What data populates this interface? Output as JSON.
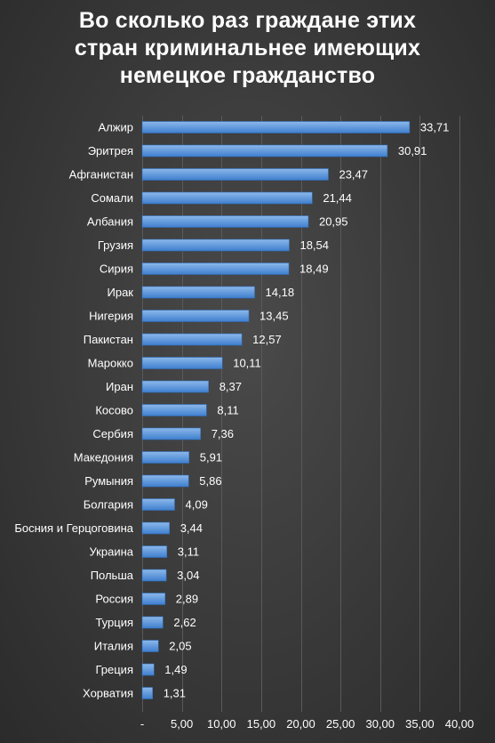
{
  "chart_data": {
    "type": "bar",
    "orientation": "horizontal",
    "title_lines": [
      "Во сколько раз граждане этих",
      "стран криминальнее имеющих",
      "немецкое гражданство"
    ],
    "categories": [
      "Алжир",
      "Эритрея",
      "Афганистан",
      "Сомали",
      "Албания",
      "Грузия",
      "Сирия",
      "Ирак",
      "Нигерия",
      "Пакистан",
      "Марокко",
      "Иран",
      "Косово",
      "Сербия",
      "Македония",
      "Румыния",
      "Болгария",
      "Босния и Герцоговина",
      "Украина",
      "Польша",
      "Россия",
      "Турция",
      "Италия",
      "Греция",
      "Хорватия"
    ],
    "values": [
      33.71,
      30.91,
      23.47,
      21.44,
      20.95,
      18.54,
      18.49,
      14.18,
      13.45,
      12.57,
      10.11,
      8.37,
      8.11,
      7.36,
      5.91,
      5.86,
      4.09,
      3.44,
      3.11,
      3.04,
      2.89,
      2.62,
      2.05,
      1.49,
      1.31
    ],
    "value_labels": [
      "33,71",
      "30,91",
      "23,47",
      "21,44",
      "20,95",
      "18,54",
      "18,49",
      "14,18",
      "13,45",
      "12,57",
      "10,11",
      "8,37",
      "8,11",
      "7,36",
      "5,91",
      "5,86",
      "4,09",
      "3,44",
      "3,11",
      "3,04",
      "2,89",
      "2,62",
      "2,05",
      "1,49",
      "1,31"
    ],
    "xlim": [
      0,
      40
    ],
    "x_ticks": [
      0,
      5,
      10,
      15,
      20,
      25,
      30,
      35,
      40
    ],
    "x_tick_labels": [
      "-",
      "5,00",
      "10,00",
      "15,00",
      "20,00",
      "25,00",
      "30,00",
      "35,00",
      "40,00"
    ],
    "grid": true,
    "legend": "none",
    "colors": {
      "bar_light": "#8cb8ea",
      "bar_dark": "#3f7fcf",
      "grid": "#5a5a5a",
      "text": "#ffffff"
    }
  }
}
